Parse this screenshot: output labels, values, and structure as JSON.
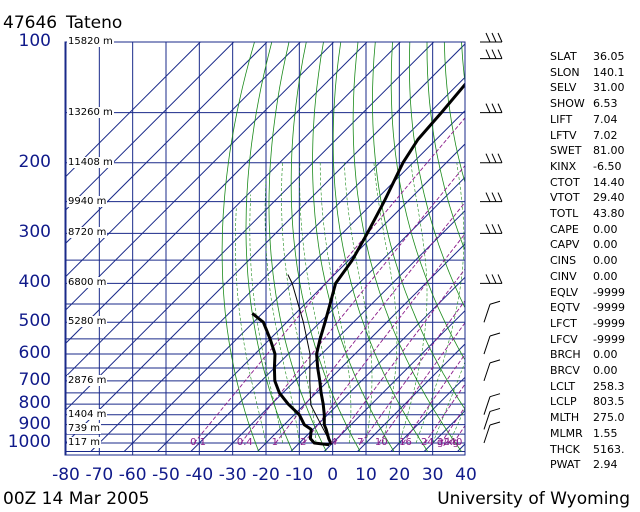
{
  "header": {
    "station_id": "47646",
    "station_name": "Tateno"
  },
  "footer": {
    "time": "00Z 14 Mar 2005",
    "source": "University of Wyoming"
  },
  "colors": {
    "axis_labels": "#101a8a",
    "grid": "#1a2a8a",
    "dry_adiabat": "#1a8a1a",
    "moist_adiabat": "#1a8a1a",
    "mixing_ratio": "#8a1a8a",
    "profile": "#000000"
  },
  "chart_data": {
    "type": "skew-T log-P sounding",
    "pressure_ticks": [
      "100",
      "200",
      "300",
      "400",
      "500",
      "600",
      "700",
      "800",
      "900",
      "1000"
    ],
    "temperature_ticks": [
      "-80",
      "-70",
      "-60",
      "-50",
      "-40",
      "-30",
      "-20",
      "-10",
      "0",
      "10",
      "20",
      "30",
      "40"
    ],
    "height_labels": [
      {
        "text": "15820 m",
        "p": 100
      },
      {
        "text": "13260 m",
        "p": 150
      },
      {
        "text": "11408 m",
        "p": 200
      },
      {
        "text": "9940 m",
        "p": 250
      },
      {
        "text": "8720 m",
        "p": 300
      },
      {
        "text": "6800 m",
        "p": 400
      },
      {
        "text": "5280 m",
        "p": 500
      },
      {
        "text": "2876 m",
        "p": 700
      },
      {
        "text": "1404 m",
        "p": 850
      },
      {
        "text": "739 m",
        "p": 925
      },
      {
        "text": "117 m",
        "p": 1000
      }
    ],
    "mixing_ratio_labels": [
      "0.1",
      "0.4",
      "1",
      "2",
      "4",
      "7",
      "10",
      "16",
      "24",
      "32",
      "40",
      "g/kg"
    ],
    "mixing_ratio_values": [
      0.1,
      0.4,
      1,
      2,
      4,
      7,
      10,
      16,
      24,
      32,
      40
    ],
    "temperature_profile": [
      {
        "p": 1010,
        "t": 0.0
      },
      {
        "p": 1000,
        "t": -0.6
      },
      {
        "p": 975,
        "t": -2.5
      },
      {
        "p": 925,
        "t": -6.0
      },
      {
        "p": 900,
        "t": -8.0
      },
      {
        "p": 850,
        "t": -11.0
      },
      {
        "p": 800,
        "t": -14.5
      },
      {
        "p": 750,
        "t": -18.5
      },
      {
        "p": 700,
        "t": -22.5
      },
      {
        "p": 650,
        "t": -27.0
      },
      {
        "p": 600,
        "t": -31.5
      },
      {
        "p": 550,
        "t": -35.0
      },
      {
        "p": 500,
        "t": -38.5
      },
      {
        "p": 450,
        "t": -42.5
      },
      {
        "p": 400,
        "t": -47.0
      },
      {
        "p": 350,
        "t": -49.0
      },
      {
        "p": 300,
        "t": -52.5
      },
      {
        "p": 250,
        "t": -57.0
      },
      {
        "p": 200,
        "t": -63.0
      },
      {
        "p": 175,
        "t": -65.5
      },
      {
        "p": 150,
        "t": -66.5
      },
      {
        "p": 125,
        "t": -68.0
      },
      {
        "p": 110,
        "t": -71.0
      },
      {
        "p": 100,
        "t": -73.5
      }
    ],
    "dewpoint_profile": [
      {
        "p": 1010,
        "t": -0.5
      },
      {
        "p": 1000,
        "t": -5.5
      },
      {
        "p": 975,
        "t": -8.0
      },
      {
        "p": 925,
        "t": -10.5
      },
      {
        "p": 900,
        "t": -14.0
      },
      {
        "p": 850,
        "t": -18.5
      },
      {
        "p": 800,
        "t": -25.0
      },
      {
        "p": 750,
        "t": -31.0
      },
      {
        "p": 700,
        "t": -36.0
      },
      {
        "p": 650,
        "t": -40.0
      },
      {
        "p": 600,
        "t": -44.0
      },
      {
        "p": 550,
        "t": -50.0
      },
      {
        "p": 500,
        "t": -57.0
      },
      {
        "p": 475,
        "t": -63.0
      }
    ],
    "parcel_path": [
      {
        "p": 1000,
        "t": -0.6
      },
      {
        "p": 900,
        "t": -9.0
      },
      {
        "p": 803.5,
        "t": -18.0
      },
      {
        "p": 700,
        "t": -25.5
      },
      {
        "p": 600,
        "t": -33.5
      },
      {
        "p": 500,
        "t": -45.0
      },
      {
        "p": 400,
        "t": -60.0
      },
      {
        "p": 380,
        "t": -64.0
      }
    ],
    "x_range": [
      -80,
      40
    ],
    "y_range_hpa": [
      1050,
      100
    ],
    "log_pressure": true,
    "wind_barb_pressures": [
      100,
      110,
      150,
      200,
      250,
      300,
      400,
      500,
      600,
      700,
      850,
      925,
      1000
    ]
  },
  "indices": [
    {
      "k": "SLAT",
      "v": "36.05"
    },
    {
      "k": "SLON",
      "v": "140.1"
    },
    {
      "k": "SELV",
      "v": "31.00"
    },
    {
      "k": "SHOW",
      "v": "6.53"
    },
    {
      "k": "LIFT",
      "v": "7.04"
    },
    {
      "k": "LFTV",
      "v": "7.02"
    },
    {
      "k": "SWET",
      "v": "81.00"
    },
    {
      "k": "KINX",
      "v": "-6.50"
    },
    {
      "k": "CTOT",
      "v": "14.40"
    },
    {
      "k": "VTOT",
      "v": "29.40"
    },
    {
      "k": "TOTL",
      "v": "43.80"
    },
    {
      "k": "CAPE",
      "v": "0.00"
    },
    {
      "k": "CAPV",
      "v": "0.00"
    },
    {
      "k": "CINS",
      "v": "0.00"
    },
    {
      "k": "CINV",
      "v": "0.00"
    },
    {
      "k": "EQLV",
      "v": "-9999"
    },
    {
      "k": "EQTV",
      "v": "-9999"
    },
    {
      "k": "LFCT",
      "v": "-9999"
    },
    {
      "k": "LFCV",
      "v": "-9999"
    },
    {
      "k": "BRCH",
      "v": "0.00"
    },
    {
      "k": "BRCV",
      "v": "0.00"
    },
    {
      "k": "LCLT",
      "v": "258.3"
    },
    {
      "k": "LCLP",
      "v": "803.5"
    },
    {
      "k": "MLTH",
      "v": "275.0"
    },
    {
      "k": "MLMR",
      "v": "1.55"
    },
    {
      "k": "THCK",
      "v": "5163."
    },
    {
      "k": "PWAT",
      "v": "2.94"
    }
  ]
}
